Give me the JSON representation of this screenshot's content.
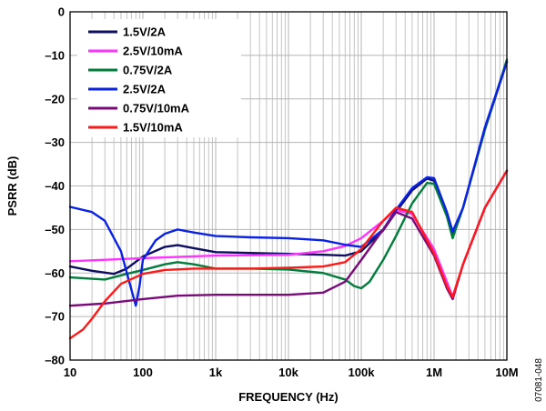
{
  "chart_data": {
    "type": "line",
    "title": "",
    "xlabel": "FREQUENCY (Hz)",
    "ylabel": "PSRR (dB)",
    "x_scale": "log",
    "xlim": [
      10,
      10000000
    ],
    "ylim": [
      -80,
      0
    ],
    "x_ticks": [
      10,
      100,
      1000,
      10000,
      100000,
      1000000,
      10000000
    ],
    "x_tick_labels": [
      "10",
      "100",
      "1k",
      "10k",
      "100k",
      "1M",
      "10M"
    ],
    "y_ticks": [
      0,
      -10,
      -20,
      -30,
      -40,
      -50,
      -60,
      -70,
      -80
    ],
    "y_tick_labels": [
      "0",
      "–10",
      "–20",
      "–30",
      "–40",
      "–50",
      "–60",
      "–70",
      "–80"
    ],
    "grid": true,
    "legend_position": "top-left",
    "figure_id": "07081-048",
    "series": [
      {
        "name": "1.5V/2A",
        "color": "#0d0d63",
        "x": [
          10,
          20,
          40,
          60,
          100,
          200,
          300,
          500,
          1000,
          3000,
          10000,
          30000,
          60000,
          100000,
          200000,
          300000,
          500000,
          800000,
          1000000,
          1500000,
          1800000,
          2500000,
          5000000,
          10000000
        ],
        "y": [
          -58.5,
          -59.5,
          -60.2,
          -59,
          -56.2,
          -54,
          -53.6,
          -54.3,
          -55.2,
          -55.4,
          -55.6,
          -55.8,
          -56,
          -55,
          -50.2,
          -46,
          -41,
          -38.3,
          -38.8,
          -46.5,
          -51,
          -45,
          -27,
          -11.5
        ]
      },
      {
        "name": "2.5V/10mA",
        "color": "#ff33ff",
        "x": [
          10,
          100,
          1000,
          10000,
          30000,
          60000,
          100000,
          200000,
          300000,
          500000,
          1000000,
          1500000,
          1800000,
          2500000,
          5000000,
          10000000
        ],
        "y": [
          -57.3,
          -56.6,
          -56,
          -55.8,
          -55,
          -53.8,
          -52,
          -48,
          -45.5,
          -46.5,
          -54.5,
          -62,
          -65.5,
          -58,
          -45,
          -36.5
        ]
      },
      {
        "name": "0.75V/2A",
        "color": "#007d3a",
        "x": [
          10,
          30,
          60,
          100,
          200,
          300,
          500,
          1000,
          3000,
          10000,
          30000,
          60000,
          80000,
          100000,
          130000,
          200000,
          300000,
          500000,
          800000,
          1000000,
          1500000,
          1800000,
          2500000,
          5000000,
          10000000
        ],
        "y": [
          -61,
          -61.5,
          -60.2,
          -59.3,
          -58,
          -57.5,
          -58,
          -59,
          -59,
          -59.2,
          -60,
          -61.5,
          -63,
          -63.5,
          -62,
          -57,
          -51.5,
          -44,
          -39.3,
          -39.5,
          -47,
          -52,
          -45,
          -27,
          -11
        ]
      },
      {
        "name": "2.5V/2A",
        "color": "#0a22e6",
        "x": [
          10,
          20,
          30,
          50,
          65,
          80,
          90,
          100,
          150,
          200,
          300,
          500,
          1000,
          3000,
          10000,
          30000,
          60000,
          100000,
          200000,
          300000,
          500000,
          800000,
          1000000,
          1500000,
          1800000,
          2500000,
          5000000,
          10000000
        ],
        "y": [
          -44.8,
          -46,
          -48,
          -55,
          -62,
          -67.5,
          -63,
          -57,
          -52.5,
          -51,
          -50,
          -50.7,
          -51.5,
          -51.8,
          -52,
          -52.5,
          -53.5,
          -54,
          -50,
          -45.5,
          -40.5,
          -38,
          -38.2,
          -46,
          -50.5,
          -45,
          -26.5,
          -11.5
        ]
      },
      {
        "name": "0.75V/10mA",
        "color": "#7a0a7a",
        "x": [
          10,
          30,
          100,
          300,
          1000,
          10000,
          30000,
          60000,
          100000,
          200000,
          300000,
          500000,
          1000000,
          1500000,
          1800000,
          2500000,
          5000000,
          10000000
        ],
        "y": [
          -67.5,
          -67,
          -66,
          -65.2,
          -65,
          -65,
          -64.5,
          -62,
          -57,
          -50,
          -46,
          -47.5,
          -56,
          -63.5,
          -66,
          -58,
          -45,
          -36.5
        ]
      },
      {
        "name": "1.5V/10mA",
        "color": "#ff1a1a",
        "x": [
          10,
          15,
          20,
          30,
          50,
          100,
          200,
          500,
          1000,
          3000,
          10000,
          30000,
          60000,
          100000,
          200000,
          300000,
          500000,
          1000000,
          1500000,
          1800000,
          2500000,
          5000000,
          10000000
        ],
        "y": [
          -75,
          -73,
          -70.5,
          -66.5,
          -62.5,
          -60.2,
          -59.3,
          -59,
          -59,
          -59,
          -58.8,
          -58.5,
          -57.5,
          -54.5,
          -48,
          -45,
          -46,
          -55.5,
          -63,
          -65.5,
          -58,
          -45,
          -36.5
        ]
      }
    ]
  }
}
